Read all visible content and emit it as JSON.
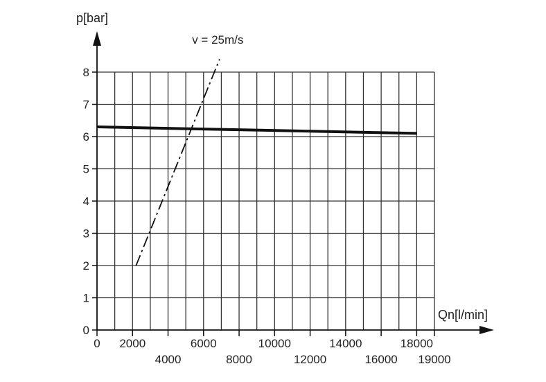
{
  "chart_data": {
    "type": "line",
    "title": "",
    "ylabel": "p[bar]",
    "xlabel": "Qn[l/min]",
    "ylim": [
      0,
      8
    ],
    "xlim": [
      0,
      19000
    ],
    "grid": true,
    "legend": "none",
    "y_ticks": [
      0,
      1,
      2,
      3,
      4,
      5,
      6,
      7,
      8
    ],
    "x_tick_labels_upper": [
      {
        "value": 0,
        "label": "0"
      },
      {
        "value": 2000,
        "label": "2000"
      },
      {
        "value": 6000,
        "label": "6000"
      },
      {
        "value": 10000,
        "label": "10000"
      },
      {
        "value": 14000,
        "label": "14000"
      },
      {
        "value": 18000,
        "label": "18000"
      }
    ],
    "x_tick_labels_lower": [
      {
        "value": 4000,
        "label": "4000"
      },
      {
        "value": 8000,
        "label": "8000"
      },
      {
        "value": 12000,
        "label": "12000"
      },
      {
        "value": 16000,
        "label": "16000"
      },
      {
        "value": 19000,
        "label": "19000"
      }
    ],
    "series": [
      {
        "style": "solid-thick",
        "x": [
          0,
          18000
        ],
        "y": [
          6.3,
          6.1
        ]
      },
      {
        "name": "v = 25m/s",
        "style": "dash-dot",
        "x": [
          2200,
          6900
        ],
        "y": [
          2.0,
          8.4
        ]
      }
    ],
    "annotation": {
      "text": "v = 25m/s",
      "x": 6800,
      "y": 9.0
    }
  }
}
